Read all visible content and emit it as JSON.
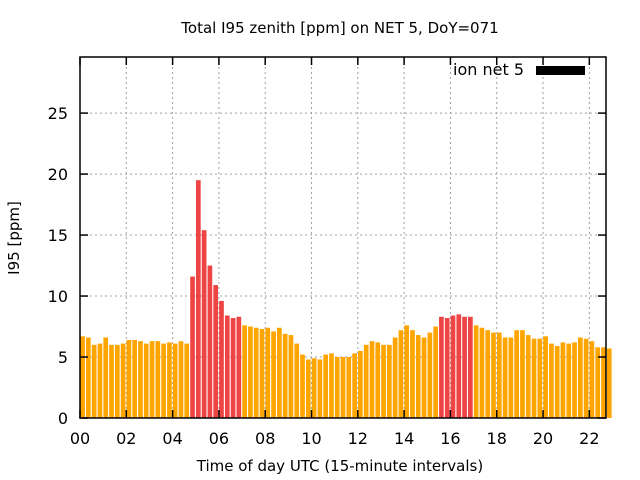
{
  "chart_data": {
    "type": "bar",
    "title": "Total I95 zenith [ppm] on NET 5, DoY=071",
    "xlabel": "Time of day UTC (15-minute intervals)",
    "ylabel": "I95 [ppm]",
    "xlim": [
      0,
      22.72
    ],
    "ylim": [
      0,
      29.6
    ],
    "grid": true,
    "legend": {
      "placement": "top-right",
      "entries": [
        {
          "label": "ion net 5",
          "color": "#000000"
        }
      ]
    },
    "x_ticks": [
      0,
      2,
      4,
      6,
      8,
      10,
      12,
      14,
      16,
      18,
      20,
      22
    ],
    "x_tick_labels": [
      "00",
      "02",
      "04",
      "06",
      "08",
      "10",
      "12",
      "14",
      "16",
      "18",
      "20",
      "22"
    ],
    "y_ticks": [
      0,
      5,
      10,
      15,
      20,
      25
    ],
    "y_tick_labels": [
      "0",
      "5",
      "10",
      "15",
      "20",
      "25"
    ],
    "interval_hours": 0.25,
    "colors": {
      "normal": "#ffa500",
      "high": "#ef4444"
    },
    "values": [
      6.7,
      6.6,
      6.0,
      6.1,
      6.6,
      6.0,
      6.0,
      6.1,
      6.4,
      6.4,
      6.3,
      6.1,
      6.3,
      6.3,
      6.1,
      6.2,
      6.1,
      6.3,
      6.1,
      11.6,
      19.5,
      15.4,
      12.5,
      10.9,
      9.6,
      8.4,
      8.2,
      8.3,
      7.6,
      7.5,
      7.4,
      7.3,
      7.4,
      7.1,
      7.4,
      6.9,
      6.8,
      6.1,
      5.2,
      4.8,
      4.9,
      4.8,
      5.2,
      5.3,
      5.0,
      5.0,
      5.0,
      5.3,
      5.5,
      6.0,
      6.3,
      6.2,
      6.0,
      6.0,
      6.6,
      7.2,
      7.6,
      7.2,
      6.8,
      6.6,
      7.0,
      7.5,
      8.3,
      8.2,
      8.4,
      8.5,
      8.3,
      8.3,
      7.6,
      7.4,
      7.2,
      7.0,
      7.0,
      6.6,
      6.6,
      7.2,
      7.2,
      6.8,
      6.5,
      6.5,
      6.7,
      6.1,
      5.9,
      6.2,
      6.1,
      6.2,
      6.6,
      6.5,
      6.3,
      5.8,
      5.8,
      5.7
    ],
    "high_flags": [
      0,
      0,
      0,
      0,
      0,
      0,
      0,
      0,
      0,
      0,
      0,
      0,
      0,
      0,
      0,
      0,
      0,
      0,
      0,
      1,
      1,
      1,
      1,
      1,
      1,
      1,
      1,
      1,
      0,
      0,
      0,
      0,
      0,
      0,
      0,
      0,
      0,
      0,
      0,
      0,
      0,
      0,
      0,
      0,
      0,
      0,
      0,
      0,
      0,
      0,
      0,
      0,
      0,
      0,
      0,
      0,
      0,
      0,
      0,
      0,
      0,
      0,
      1,
      1,
      1,
      1,
      1,
      1,
      0,
      0,
      0,
      0,
      0,
      0,
      0,
      0,
      0,
      0,
      0,
      0,
      0,
      0,
      0,
      0,
      0,
      0,
      0,
      0,
      0,
      0,
      0,
      0
    ]
  }
}
